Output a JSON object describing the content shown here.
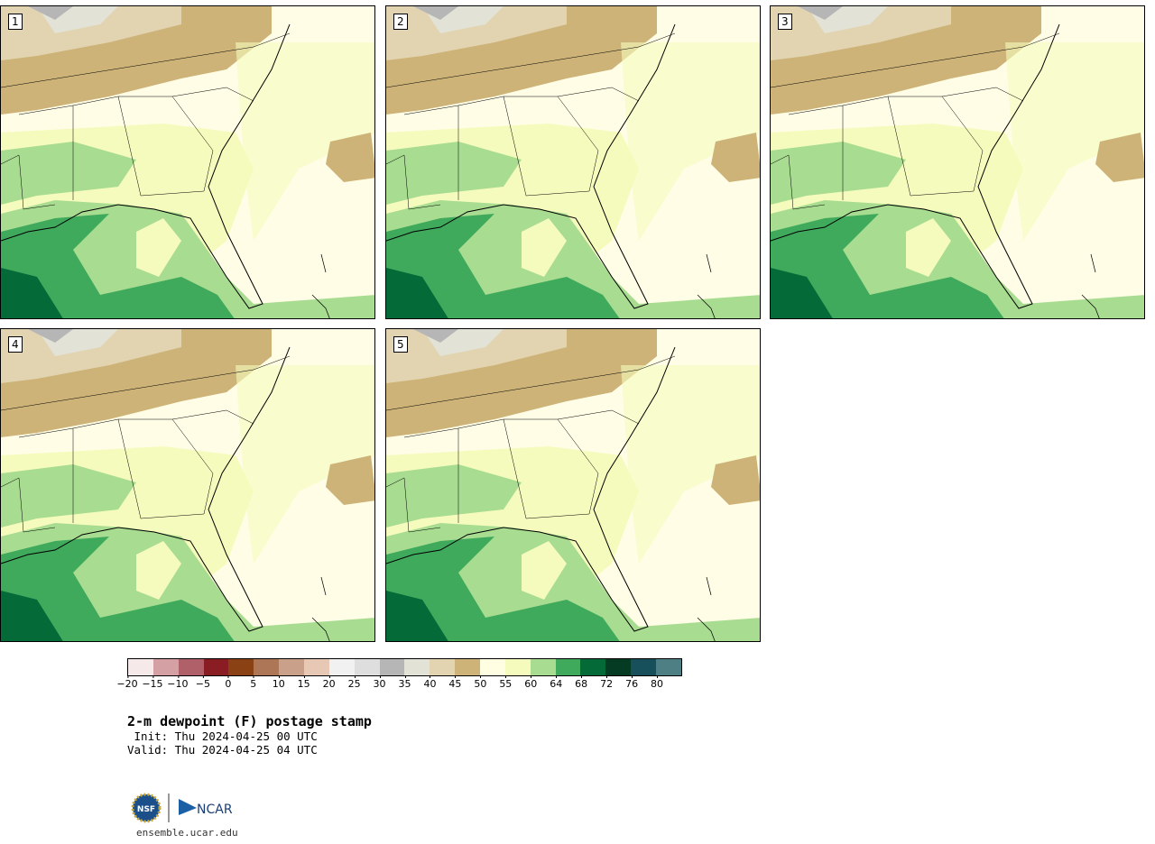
{
  "panels": [
    {
      "label": "1"
    },
    {
      "label": "2"
    },
    {
      "label": "3"
    },
    {
      "label": "4"
    },
    {
      "label": "5"
    }
  ],
  "colorbar": {
    "colors": [
      "#f5e9e9",
      "#d4a0a4",
      "#b06068",
      "#8a1c24",
      "#8a4214",
      "#ad7656",
      "#c9a08a",
      "#e6c8b4",
      "#f1f1f1",
      "#dedede",
      "#b6b6b6",
      "#e2e2d6",
      "#e2d4b0",
      "#cdb378",
      "#fffee2",
      "#f5fbbc",
      "#a8dc90",
      "#3fa95c",
      "#046b38",
      "#053a23",
      "#174f5a",
      "#4e7f84"
    ],
    "ticks": [
      "−20",
      "−15",
      "−10",
      "−5",
      "0",
      "5",
      "10",
      "15",
      "20",
      "25",
      "30",
      "35",
      "40",
      "45",
      "50",
      "55",
      "60",
      "64",
      "68",
      "72",
      "76",
      "80"
    ]
  },
  "title": "2-m dewpoint (F) postage stamp",
  "init": " Init: Thu 2024-04-25 00 UTC",
  "valid": "Valid: Thu 2024-04-25 04 UTC",
  "logo": {
    "nsf": "NSF",
    "ncar": "NCAR"
  },
  "site": "ensemble.ucar.edu"
}
